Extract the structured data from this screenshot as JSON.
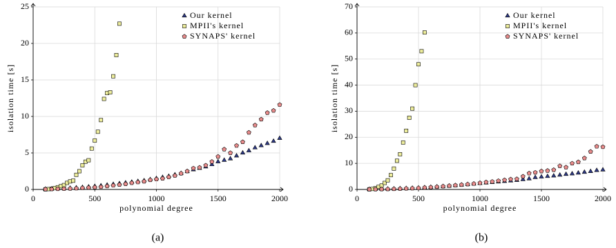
{
  "chart_data": [
    {
      "type": "scatter",
      "caption": "(a)",
      "xlabel": "polynomial degree",
      "ylabel": "isolation time [s]",
      "xlim": [
        0,
        2000
      ],
      "xticks": [
        0,
        500,
        1000,
        1500,
        2000
      ],
      "ylim": [
        0,
        25
      ],
      "yticks": [
        0,
        5,
        10,
        15,
        20,
        25
      ],
      "grid": true,
      "legend": "top-right",
      "series": [
        {
          "name": "Our kernel",
          "color": "#2e3a87",
          "marker": "triangle",
          "x": [
            100,
            150,
            200,
            250,
            300,
            350,
            400,
            450,
            500,
            550,
            600,
            650,
            700,
            750,
            800,
            850,
            900,
            950,
            1000,
            1050,
            1100,
            1150,
            1200,
            1250,
            1300,
            1350,
            1400,
            1450,
            1500,
            1550,
            1600,
            1650,
            1700,
            1750,
            1800,
            1850,
            1900,
            1950,
            2000
          ],
          "values": [
            0.05,
            0.07,
            0.1,
            0.13,
            0.17,
            0.22,
            0.28,
            0.35,
            0.42,
            0.5,
            0.6,
            0.7,
            0.8,
            0.9,
            1.0,
            1.1,
            1.2,
            1.35,
            1.5,
            1.65,
            1.8,
            2.0,
            2.2,
            2.45,
            2.7,
            2.9,
            3.1,
            3.4,
            3.8,
            4.0,
            4.2,
            4.6,
            5.0,
            5.3,
            5.7,
            6.0,
            6.3,
            6.6,
            7.0
          ]
        },
        {
          "name": "MPII's kernel",
          "color": "#eded9c",
          "marker": "square",
          "x": [
            100,
            125,
            150,
            175,
            200,
            225,
            250,
            275,
            300,
            325,
            350,
            375,
            400,
            425,
            450,
            475,
            500,
            525,
            550,
            575,
            600,
            625,
            650,
            675,
            700
          ],
          "values": [
            0.02,
            0.05,
            0.1,
            0.2,
            0.3,
            0.45,
            0.6,
            0.9,
            1.1,
            1.2,
            2.0,
            2.5,
            3.3,
            3.8,
            4.0,
            5.6,
            6.7,
            7.9,
            9.5,
            12.4,
            13.2,
            13.3,
            15.5,
            18.4,
            22.7
          ]
        },
        {
          "name": "SYNAPS' kernel",
          "color": "#e98c8c",
          "marker": "pentagon",
          "x": [
            100,
            150,
            200,
            250,
            300,
            350,
            400,
            450,
            500,
            550,
            600,
            650,
            700,
            750,
            800,
            850,
            900,
            950,
            1000,
            1050,
            1100,
            1150,
            1200,
            1250,
            1300,
            1350,
            1400,
            1450,
            1500,
            1550,
            1600,
            1650,
            1700,
            1750,
            1800,
            1850,
            1900,
            1950,
            2000
          ],
          "values": [
            0.03,
            0.05,
            0.07,
            0.1,
            0.12,
            0.15,
            0.2,
            0.25,
            0.3,
            0.35,
            0.45,
            0.55,
            0.65,
            0.75,
            0.9,
            1.0,
            1.1,
            1.3,
            1.4,
            1.5,
            1.7,
            1.9,
            2.2,
            2.5,
            2.9,
            3.0,
            3.3,
            3.8,
            4.5,
            5.5,
            5.0,
            6.0,
            6.5,
            7.8,
            8.8,
            9.6,
            10.5,
            10.8,
            11.6
          ]
        }
      ]
    },
    {
      "type": "scatter",
      "caption": "(b)",
      "xlabel": "polynomial degree",
      "ylabel": "isolation time [s]",
      "xlim": [
        0,
        2000
      ],
      "xticks": [
        0,
        500,
        1000,
        1500,
        2000
      ],
      "ylim": [
        0,
        70
      ],
      "yticks": [
        0,
        10,
        20,
        30,
        40,
        50,
        60,
        70
      ],
      "grid": true,
      "legend": "top-right",
      "series": [
        {
          "name": "Our kernel",
          "color": "#2e3a87",
          "marker": "triangle",
          "x": [
            100,
            150,
            200,
            250,
            300,
            350,
            400,
            450,
            500,
            550,
            600,
            650,
            700,
            750,
            800,
            850,
            900,
            950,
            1000,
            1050,
            1100,
            1150,
            1200,
            1250,
            1300,
            1350,
            1400,
            1450,
            1500,
            1550,
            1600,
            1650,
            1700,
            1750,
            1800,
            1850,
            1900,
            1950,
            2000
          ],
          "values": [
            0.05,
            0.08,
            0.12,
            0.17,
            0.22,
            0.3,
            0.38,
            0.47,
            0.57,
            0.7,
            0.85,
            1.0,
            1.15,
            1.3,
            1.5,
            1.7,
            1.9,
            2.1,
            2.3,
            2.5,
            2.7,
            2.9,
            3.1,
            3.3,
            3.5,
            3.8,
            4.1,
            4.6,
            4.8,
            5.0,
            5.2,
            5.5,
            5.8,
            6.0,
            6.3,
            6.6,
            6.9,
            7.3,
            7.5
          ]
        },
        {
          "name": "MPII's kernel",
          "color": "#eded9c",
          "marker": "square",
          "x": [
            100,
            125,
            150,
            175,
            200,
            225,
            250,
            275,
            300,
            325,
            350,
            375,
            400,
            425,
            450,
            475,
            500,
            525,
            550
          ],
          "values": [
            0.05,
            0.2,
            0.5,
            1,
            1.5,
            2.5,
            3.5,
            5.5,
            8,
            11,
            13.5,
            18,
            22.5,
            27.5,
            31,
            40,
            48,
            53,
            60.2
          ]
        },
        {
          "name": "SYNAPS' kernel",
          "color": "#e98c8c",
          "marker": "pentagon",
          "x": [
            100,
            150,
            200,
            250,
            300,
            350,
            400,
            450,
            500,
            550,
            600,
            650,
            700,
            750,
            800,
            850,
            900,
            950,
            1000,
            1050,
            1100,
            1150,
            1200,
            1250,
            1300,
            1350,
            1400,
            1450,
            1500,
            1550,
            1600,
            1650,
            1700,
            1750,
            1800,
            1850,
            1900,
            1950,
            2000
          ],
          "values": [
            0.03,
            0.06,
            0.1,
            0.15,
            0.2,
            0.28,
            0.36,
            0.45,
            0.55,
            0.7,
            0.85,
            1.0,
            1.2,
            1.4,
            1.6,
            1.8,
            2.0,
            2.2,
            2.5,
            2.8,
            3.0,
            3.3,
            3.6,
            3.9,
            4.0,
            5.0,
            6.2,
            6.5,
            7.0,
            7.2,
            7.5,
            9.0,
            8.5,
            10.0,
            10.5,
            12.0,
            14.5,
            16.5,
            16.3
          ]
        }
      ]
    }
  ]
}
